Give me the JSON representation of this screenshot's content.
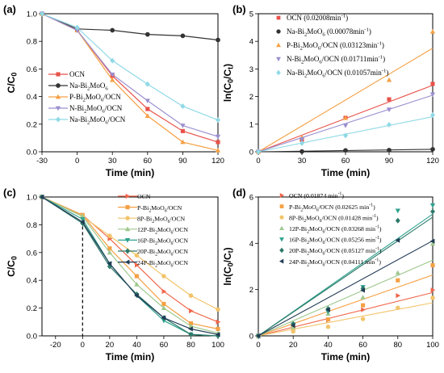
{
  "chart_data": [
    {
      "panel": "(a)",
      "type": "line",
      "xlabel": "Time (min)",
      "ylabel": "C/C0",
      "ylabel_main": "C/C",
      "ylabel_sub": "0",
      "x": [
        -30,
        0,
        30,
        60,
        90,
        120
      ],
      "xlim": [
        -30,
        120
      ],
      "ylim": [
        0,
        1.0
      ],
      "xticks": [
        -30,
        0,
        30,
        60,
        90,
        120
      ],
      "yticks": [
        0.0,
        0.2,
        0.4,
        0.6,
        0.8,
        1.0
      ],
      "legend_position": "center-left",
      "series": [
        {
          "name": "OCN",
          "label_parts": [
            [
              "OCN",
              "n"
            ]
          ],
          "color": "#e8524a",
          "marker": "square",
          "values": [
            1.0,
            0.88,
            0.55,
            0.31,
            0.15,
            0.07
          ]
        },
        {
          "name": "Na-Bi2MoO6",
          "label_parts": [
            [
              "Na-Bi",
              "n"
            ],
            [
              "2",
              "s"
            ],
            [
              "MoO",
              "n"
            ],
            [
              "6",
              "s"
            ]
          ],
          "color": "#333333",
          "marker": "circle",
          "values": [
            1.0,
            0.89,
            0.88,
            0.85,
            0.84,
            0.81
          ]
        },
        {
          "name": "P-Bi2MoO6/OCN",
          "label_parts": [
            [
              "P-Bi",
              "n"
            ],
            [
              "2",
              "s"
            ],
            [
              "MoO",
              "n"
            ],
            [
              "6",
              "s"
            ],
            [
              "/OCN",
              "n"
            ]
          ],
          "color": "#f5a044",
          "marker": "triangle",
          "values": [
            1.0,
            0.88,
            0.52,
            0.26,
            0.07,
            0.01
          ]
        },
        {
          "name": "N-Bi2MoO6/OCN",
          "label_parts": [
            [
              "N-Bi",
              "n"
            ],
            [
              "2",
              "s"
            ],
            [
              "MoO",
              "n"
            ],
            [
              "6",
              "s"
            ],
            [
              "/OCN",
              "n"
            ]
          ],
          "color": "#9b8fd0",
          "marker": "triangle-down",
          "values": [
            1.0,
            0.88,
            0.56,
            0.37,
            0.19,
            0.11
          ]
        },
        {
          "name": "Na-Bi2MoO6/OCN",
          "label_parts": [
            [
              "Na-Bi",
              "n"
            ],
            [
              "2",
              "s"
            ],
            [
              "MoO",
              "n"
            ],
            [
              "6",
              "s"
            ],
            [
              "/OCN",
              "n"
            ]
          ],
          "color": "#8fd9e6",
          "marker": "diamond",
          "values": [
            1.0,
            0.9,
            0.66,
            0.49,
            0.33,
            0.23
          ]
        }
      ]
    },
    {
      "panel": "(b)",
      "type": "scatter",
      "xlabel": "Time (min)",
      "ylabel": "ln(C0/Ct)",
      "x": [
        0,
        30,
        60,
        90,
        120
      ],
      "xlim": [
        0,
        120
      ],
      "ylim": [
        0,
        5
      ],
      "xticks": [
        0,
        30,
        60,
        90,
        120
      ],
      "yticks": [
        0,
        1,
        2,
        3,
        4,
        5
      ],
      "legend_position": "top",
      "series": [
        {
          "name": "OCN (0.02008min-1)",
          "label_parts": [
            [
              "OCN (0.02008min",
              "n"
            ],
            [
              "-1",
              "p"
            ],
            [
              ")",
              "n"
            ]
          ],
          "color": "#e8524a",
          "marker": "square",
          "values": [
            0,
            0.44,
            1.23,
            1.9,
            2.46
          ],
          "fit_end": 2.41
        },
        {
          "name": "Na-Bi2MoO6 (0.00078min-1)",
          "label_parts": [
            [
              "Na-Bi",
              "n"
            ],
            [
              "2",
              "s"
            ],
            [
              "MoO",
              "n"
            ],
            [
              "6",
              "s"
            ],
            [
              " (0.00078min",
              "n"
            ],
            [
              "-1",
              "p"
            ],
            [
              ")",
              "n"
            ]
          ],
          "color": "#333333",
          "marker": "circle",
          "values": [
            0,
            0.01,
            0.05,
            0.06,
            0.09
          ],
          "fit_end": 0.09
        },
        {
          "name": "P-Bi2MoO6/OCN (0.03123min-1)",
          "label_parts": [
            [
              "P-Bi",
              "n"
            ],
            [
              "2",
              "s"
            ],
            [
              "MoO",
              "n"
            ],
            [
              "6",
              "s"
            ],
            [
              "/OCN (0.03123min",
              "n"
            ],
            [
              "-1",
              "p"
            ],
            [
              ")",
              "n"
            ]
          ],
          "color": "#f5a044",
          "marker": "triangle",
          "values": [
            0,
            0.52,
            1.22,
            2.6,
            4.35
          ],
          "fit_end": 3.75
        },
        {
          "name": "N-Bi2MoO6/OCN (0.01711min-1)",
          "label_parts": [
            [
              "N-Bi",
              "n"
            ],
            [
              "2",
              "s"
            ],
            [
              "MoO",
              "n"
            ],
            [
              "6",
              "s"
            ],
            [
              "/OCN (0.01711min",
              "n"
            ],
            [
              "-1",
              "p"
            ],
            [
              ")",
              "n"
            ]
          ],
          "color": "#9b8fd0",
          "marker": "triangle-down",
          "values": [
            0,
            0.45,
            0.95,
            1.53,
            2.08
          ],
          "fit_end": 2.05
        },
        {
          "name": "Na-Bi2MoO6/OCN (0.01057min-1)",
          "label_parts": [
            [
              "Na-Bi",
              "n"
            ],
            [
              "2",
              "s"
            ],
            [
              "MoO",
              "n"
            ],
            [
              "6",
              "s"
            ],
            [
              "/OCN (0.01057min",
              "n"
            ],
            [
              "-1",
              "p"
            ],
            [
              ")",
              "n"
            ]
          ],
          "color": "#8fd9e6",
          "marker": "diamond",
          "values": [
            0,
            0.31,
            0.59,
            0.98,
            1.33
          ],
          "fit_end": 1.27
        }
      ]
    },
    {
      "panel": "(c)",
      "type": "line",
      "xlabel": "Time (min)",
      "ylabel": "C/C0",
      "x": [
        -30,
        0,
        20,
        40,
        60,
        80,
        100
      ],
      "xlim": [
        -30,
        100
      ],
      "ylim": [
        0,
        1.0
      ],
      "xticks": [
        -20,
        0,
        20,
        40,
        60,
        80,
        100
      ],
      "yticks": [
        0.0,
        0.2,
        0.4,
        0.6,
        0.8,
        1.0
      ],
      "dashed_vline_x": 0,
      "legend_position": "top-right",
      "series": [
        {
          "name": "OCN",
          "label_parts": [
            [
              "OCN",
              "n"
            ]
          ],
          "color": "#f0664a",
          "marker": "triangle-right",
          "values": [
            1.0,
            0.87,
            0.7,
            0.51,
            0.32,
            0.18,
            0.1
          ]
        },
        {
          "name": "P-Bi2MoO6/OCN",
          "label_parts": [
            [
              "P-Bi",
              "n"
            ],
            [
              "2",
              "s"
            ],
            [
              "MoO",
              "n"
            ],
            [
              "6",
              "s"
            ],
            [
              "/OCN",
              "n"
            ]
          ],
          "color": "#f5a044",
          "marker": "square",
          "values": [
            1.0,
            0.87,
            0.63,
            0.43,
            0.23,
            0.09,
            0.05
          ]
        },
        {
          "name": "8P-Bi2MoO6/OCN",
          "label_parts": [
            [
              "8P-Bi",
              "n"
            ],
            [
              "2",
              "s"
            ],
            [
              "MoO",
              "n"
            ],
            [
              "6",
              "s"
            ],
            [
              "/OCN",
              "n"
            ]
          ],
          "color": "#f2c46a",
          "marker": "hexagon",
          "values": [
            1.0,
            0.86,
            0.72,
            0.58,
            0.43,
            0.29,
            0.19
          ]
        },
        {
          "name": "12P-Bi2MoO6/OCN",
          "label_parts": [
            [
              "12P-Bi",
              "n"
            ],
            [
              "2",
              "s"
            ],
            [
              "MoO",
              "n"
            ],
            [
              "6",
              "s"
            ],
            [
              "/OCN",
              "n"
            ]
          ],
          "color": "#9ec88e",
          "marker": "triangle",
          "values": [
            1.0,
            0.86,
            0.6,
            0.37,
            0.2,
            0.07,
            0.02
          ]
        },
        {
          "name": "16P-Bi2MoO6/OCN",
          "label_parts": [
            [
              "16P-Bi",
              "n"
            ],
            [
              "2",
              "s"
            ],
            [
              "MoO",
              "n"
            ],
            [
              "6",
              "s"
            ],
            [
              "/OCN",
              "n"
            ]
          ],
          "color": "#2fa28f",
          "marker": "triangle-down",
          "values": [
            1.0,
            0.84,
            0.52,
            0.29,
            0.11,
            0.01,
            0.0
          ]
        },
        {
          "name": "20P-Bi2MoO6/OCN",
          "label_parts": [
            [
              "20P-Bi",
              "n"
            ],
            [
              "2",
              "s"
            ],
            [
              "MoO",
              "n"
            ],
            [
              "6",
              "s"
            ],
            [
              "/OCN",
              "n"
            ]
          ],
          "color": "#2d7a6a",
          "marker": "diamond",
          "values": [
            1.0,
            0.81,
            0.5,
            0.3,
            0.13,
            0.01,
            0.0
          ]
        },
        {
          "name": "24P-Bi2MoO6/OCN",
          "label_parts": [
            [
              "24P-Bi",
              "n"
            ],
            [
              "2",
              "s"
            ],
            [
              "MoO",
              "n"
            ],
            [
              "6",
              "s"
            ],
            [
              "/OCN",
              "n"
            ]
          ],
          "color": "#223b55",
          "marker": "triangle-left",
          "values": [
            1.0,
            0.82,
            0.52,
            0.29,
            0.13,
            0.05,
            0.01
          ]
        }
      ]
    },
    {
      "panel": "(d)",
      "type": "scatter",
      "xlabel": "Time (min)",
      "ylabel": "ln(C0/Ct)",
      "x": [
        0,
        20,
        40,
        60,
        80,
        100
      ],
      "xlim": [
        0,
        100
      ],
      "ylim": [
        0,
        6
      ],
      "xticks": [
        0,
        20,
        40,
        60,
        80,
        100
      ],
      "yticks": [
        0,
        2,
        4,
        6
      ],
      "legend_position": "top-left",
      "series": [
        {
          "name": "OCN (0.01874 min-1)",
          "label_parts": [
            [
              "OCN (0.01874 min",
              "n"
            ],
            [
              "-1",
              "p"
            ],
            [
              ")",
              "n"
            ]
          ],
          "color": "#f0664a",
          "marker": "triangle-right",
          "values": [
            0,
            0.37,
            0.68,
            1.13,
            1.74,
            1.98
          ],
          "fit_end": 1.87
        },
        {
          "name": "P-Bi2MoO6/OCN (0.02625 min-1)",
          "label_parts": [
            [
              "P-Bi",
              "n"
            ],
            [
              "2",
              "s"
            ],
            [
              "MoO",
              "n"
            ],
            [
              "6",
              "s"
            ],
            [
              "/OCN (0.02625 min",
              "n"
            ],
            [
              "-1",
              "p"
            ],
            [
              ")",
              "n"
            ]
          ],
          "color": "#f5a044",
          "marker": "square",
          "values": [
            0,
            0.33,
            0.71,
            1.32,
            2.4,
            3.05
          ],
          "fit_end": 2.63
        },
        {
          "name": "8P-Bi2MoO6/OCN (0.01428 min-1)",
          "label_parts": [
            [
              "8P-Bi",
              "n"
            ],
            [
              "2",
              "s"
            ],
            [
              "MoO",
              "n"
            ],
            [
              "6",
              "s"
            ],
            [
              "/OCN (0.01428 min",
              "n"
            ],
            [
              "-1",
              "p"
            ],
            [
              ")",
              "n"
            ]
          ],
          "color": "#f2c46a",
          "marker": "hexagon",
          "values": [
            0,
            0.19,
            0.39,
            0.73,
            1.21,
            1.64
          ],
          "fit_end": 1.43
        },
        {
          "name": "12P-Bi2MoO6/OCN (0.03268 min-1)",
          "label_parts": [
            [
              "12P-Bi",
              "n"
            ],
            [
              "2",
              "s"
            ],
            [
              "MoO",
              "n"
            ],
            [
              "6",
              "s"
            ],
            [
              "/OCN (0.03268 min",
              "n"
            ],
            [
              "-1",
              "p"
            ],
            [
              ")",
              "n"
            ]
          ],
          "color": "#9ec88e",
          "marker": "triangle",
          "values": [
            0,
            0.38,
            0.95,
            1.66,
            2.72,
            3.98
          ],
          "fit_end": 3.27
        },
        {
          "name": "16P-Bi2MoO6/OCN (0.05256 min-1)",
          "label_parts": [
            [
              "16P-Bi",
              "n"
            ],
            [
              "2",
              "s"
            ],
            [
              "MoO",
              "n"
            ],
            [
              "6",
              "s"
            ],
            [
              "/OCN (0.05256 min",
              "n"
            ],
            [
              "-1",
              "p"
            ],
            [
              ")",
              "n"
            ]
          ],
          "color": "#2fa28f",
          "marker": "triangle-down",
          "values": [
            0,
            0.49,
            1.04,
            2.11,
            5.41,
            5.64
          ],
          "fit_end": 5.26
        },
        {
          "name": "20P-Bi2MoO6/OCN (0.05127 min-1)",
          "label_parts": [
            [
              "20P-Bi",
              "n"
            ],
            [
              "2",
              "s"
            ],
            [
              "MoO",
              "n"
            ],
            [
              "6",
              "s"
            ],
            [
              "/OCN (0.05127 min",
              "n"
            ],
            [
              "-1",
              "p"
            ],
            [
              ")",
              "n"
            ]
          ],
          "color": "#2d7a6a",
          "marker": "diamond",
          "values": [
            0,
            0.52,
            1.17,
            2.05,
            4.98,
            5.37
          ],
          "fit_end": 5.13
        },
        {
          "name": "24P-Bi2MoO6/OCN (0.04111 min-1)",
          "label_parts": [
            [
              "24P-Bi",
              "n"
            ],
            [
              "2",
              "s"
            ],
            [
              "MoO",
              "n"
            ],
            [
              "6",
              "s"
            ],
            [
              "/OCN (0.04111 min",
              "n"
            ],
            [
              "-1",
              "p"
            ],
            [
              ")",
              "n"
            ]
          ],
          "color": "#223b55",
          "marker": "triangle-left",
          "values": [
            0,
            0.45,
            1.13,
            1.97,
            4.13,
            4.09
          ],
          "fit_end": 4.11
        }
      ]
    }
  ]
}
